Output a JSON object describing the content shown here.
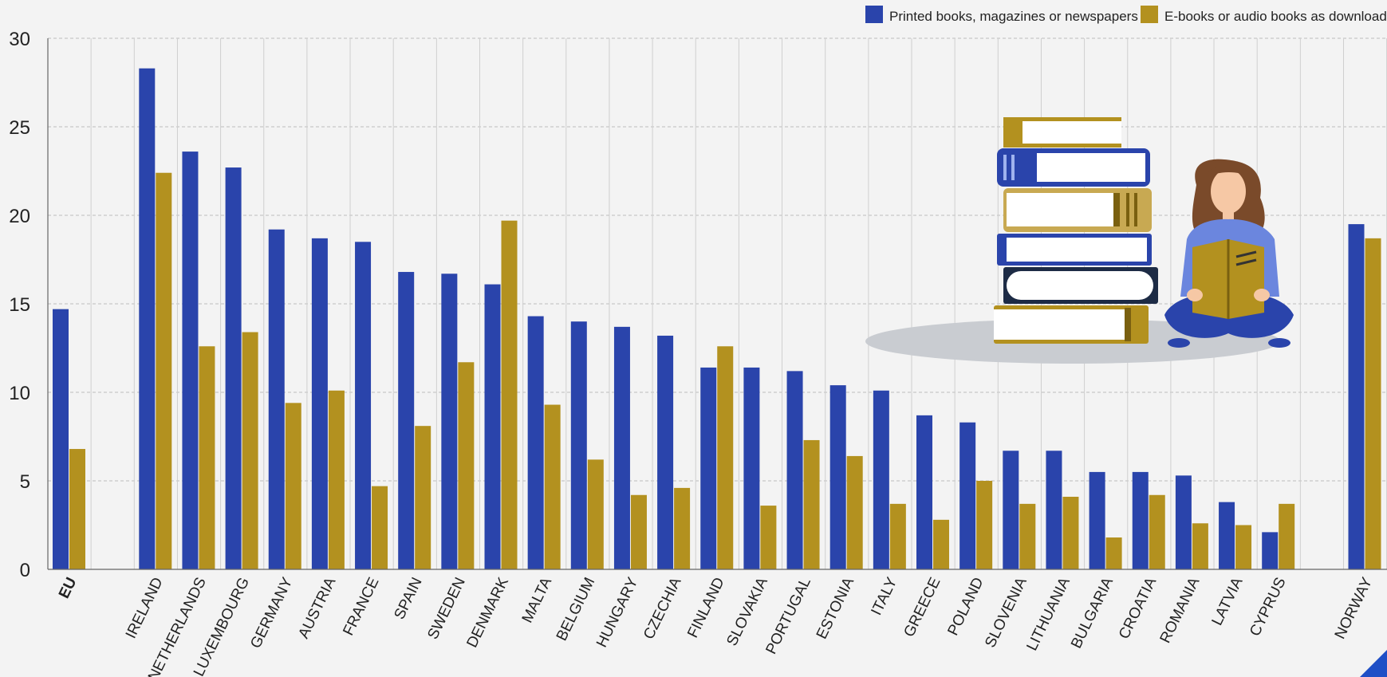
{
  "colors": {
    "printed": "#2a44ab",
    "ebooks": "#b3911f",
    "background": "#f3f3f3",
    "grid": "#bdbdbd",
    "axis": "#666666",
    "text": "#222222"
  },
  "legend": {
    "items": [
      {
        "label": "Printed books, magazines or newspapers",
        "color": "#2a44ab"
      },
      {
        "label": "E-books or audio books as downloads",
        "color": "#b3911f"
      }
    ]
  },
  "illustration": {
    "icon": "woman-reading-with-book-stack-illustration"
  },
  "chart_data": {
    "type": "bar",
    "grid": true,
    "legend_position": "top-right",
    "ylim": [
      0,
      30
    ],
    "yticks": [
      "0",
      "5",
      "10",
      "15",
      "20",
      "25",
      "30"
    ],
    "categories": [
      "EU",
      "IRELAND",
      "NETHERLANDS",
      "LUXEMBOURG",
      "GERMANY",
      "AUSTRIA",
      "FRANCE",
      "SPAIN",
      "SWEDEN",
      "DENMARK",
      "MALTA",
      "BELGIUM",
      "HUNGARY",
      "CZECHIA",
      "FINLAND",
      "SLOVAKIA",
      "PORTUGAL",
      "ESTONIA",
      "ITALY",
      "GREECE",
      "POLAND",
      "SLOVENIA",
      "LITHUANIA",
      "BULGARIA",
      "CROATIA",
      "ROMANIA",
      "LATVIA",
      "CYPRUS",
      "NORWAY"
    ],
    "series": [
      {
        "name": "Printed books, magazines or newspapers",
        "values": [
          14.7,
          28.3,
          23.6,
          22.7,
          19.2,
          18.7,
          18.5,
          16.8,
          16.7,
          16.1,
          14.3,
          14.0,
          13.7,
          13.2,
          11.4,
          11.4,
          11.2,
          10.4,
          10.1,
          8.7,
          8.3,
          6.7,
          6.7,
          5.5,
          5.5,
          5.3,
          3.8,
          2.1,
          19.5
        ]
      },
      {
        "name": "E-books or audio books as downloads",
        "values": [
          6.8,
          22.4,
          12.6,
          13.4,
          9.4,
          10.1,
          4.7,
          8.1,
          11.7,
          19.7,
          9.3,
          6.2,
          4.2,
          4.6,
          12.6,
          3.6,
          7.3,
          6.4,
          3.7,
          2.8,
          5.0,
          3.7,
          4.1,
          1.8,
          4.2,
          2.6,
          2.5,
          3.7,
          18.7
        ]
      }
    ]
  }
}
